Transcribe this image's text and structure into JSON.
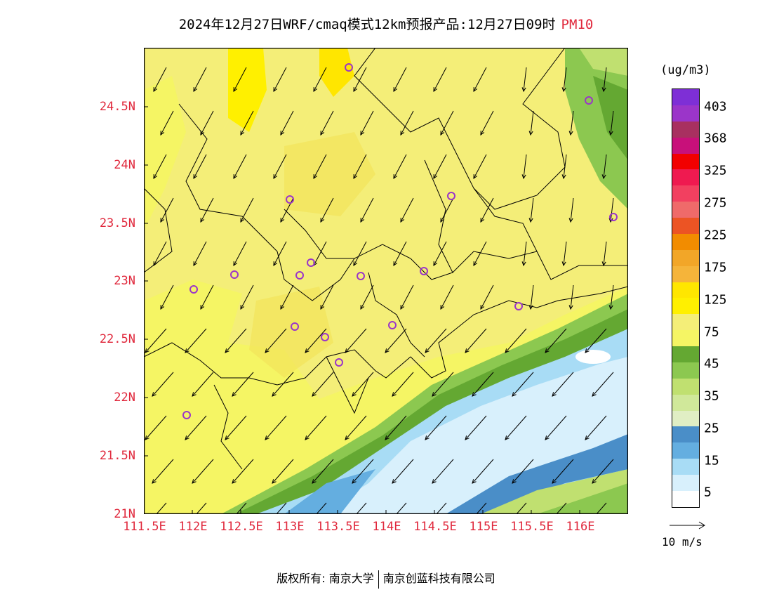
{
  "title": {
    "main": "2024年12月27日WRF/cmaq模式12km预报产品:12月27日09时",
    "pollutant": "PM10"
  },
  "axes": {
    "y_labels": [
      "24.5N",
      "24N",
      "23.5N",
      "23N",
      "22.5N",
      "22N",
      "21.5N",
      "21N"
    ],
    "x_labels": [
      "111.5E",
      "112E",
      "112.5E",
      "113E",
      "113.5E",
      "114E",
      "114.5E",
      "115E",
      "115.5E",
      "116E"
    ]
  },
  "colorbar": {
    "unit": "(ug/m3)",
    "labels": [
      "403",
      "368",
      "325",
      "275",
      "225",
      "175",
      "125",
      "75",
      "45",
      "35",
      "25",
      "15",
      "5"
    ],
    "colors": [
      "#7e2fd6",
      "#9b35c9",
      "#a83060",
      "#c8107a",
      "#f20000",
      "#ef1a50",
      "#f24060",
      "#ef6a6a",
      "#ec5424",
      "#f28c00",
      "#f2a628",
      "#f5b43a",
      "#ffe600",
      "#fff000",
      "#f4ee78",
      "#f5f564",
      "#64a832",
      "#8cc850",
      "#c0e070",
      "#d0e89a",
      "#e0eec4",
      "#4a8ec8",
      "#64aee0",
      "#a8dcf5",
      "#d8f0fc",
      "#ffffff"
    ]
  },
  "vector_reference": {
    "label": "10 m/s"
  },
  "stations": 17,
  "footer": {
    "left": "版权所有: 南京大学",
    "right": "南京创蓝科技有限公司"
  }
}
